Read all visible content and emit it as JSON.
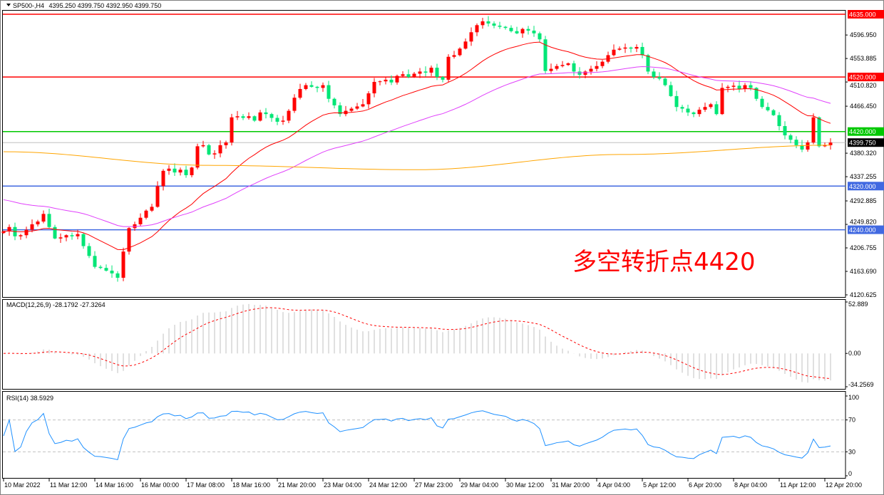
{
  "header": {
    "symbol": "SP500-,H4",
    "ohlc": "4395.250 4399.750 4392.950 4399.750"
  },
  "annotation": "多空转折点4420",
  "colors": {
    "up": "#ff0000",
    "down": "#00e676",
    "ma_fast": "#ff0000",
    "ma_mid": "#e040fb",
    "ma_slow": "#ffa500",
    "rsi": "#1e90ff",
    "macd_hist": "#c0c0c0",
    "macd_signal": "#ff0000"
  },
  "chart_data": [
    {
      "type": "candlestick",
      "title": "SP500-,H4",
      "ylim": [
        4120.625,
        4640
      ],
      "y_ticks": [
        "4596.950",
        "4553.885",
        "4510.820",
        "4466.450",
        "4380.320",
        "4337.255",
        "4292.885",
        "4249.820",
        "4206.755",
        "4163.690",
        "4120.625"
      ],
      "x_ticks": [
        "10 Mar 2022",
        "11 Mar 12:00",
        "14 Mar 16:00",
        "16 Mar 00:00",
        "17 Mar 08:00",
        "18 Mar 16:00",
        "21 Mar 20:00",
        "23 Mar 04:00",
        "24 Mar 12:00",
        "27 Mar 23:00",
        "29 Mar 04:00",
        "30 Mar 12:00",
        "31 Mar 20:00",
        "4 Apr 04:00",
        "5 Apr 12:00",
        "6 Apr 20:00",
        "8 Apr 04:00",
        "11 Apr 12:00",
        "12 Apr 20:00"
      ],
      "closes": [
        4237,
        4245,
        4228,
        4230,
        4240,
        4250,
        4255,
        4269,
        4245,
        4224,
        4226,
        4230,
        4228,
        4232,
        4210,
        4192,
        4172,
        4170,
        4165,
        4160,
        4152,
        4200,
        4243,
        4250,
        4262,
        4275,
        4282,
        4320,
        4348,
        4352,
        4345,
        4350,
        4340,
        4354,
        4393,
        4395,
        4378,
        4380,
        4395,
        4400,
        4446,
        4448,
        4445,
        4448,
        4440,
        4455,
        4452,
        4445,
        4438,
        4440,
        4458,
        4482,
        4498,
        4505,
        4502,
        4500,
        4505,
        4480,
        4468,
        4452,
        4458,
        4462,
        4466,
        4470,
        4490,
        4511,
        4512,
        4515,
        4510,
        4522,
        4525,
        4520,
        4526,
        4530,
        4528,
        4537,
        4520,
        4515,
        4557,
        4560,
        4572,
        4585,
        4602,
        4615,
        4622,
        4618,
        4614,
        4612,
        4610,
        4604,
        4600,
        4608,
        4605,
        4600,
        4589,
        4531,
        4535,
        4540,
        4542,
        4545,
        4530,
        4524,
        4530,
        4535,
        4540,
        4548,
        4560,
        4570,
        4572,
        4574,
        4572,
        4575,
        4560,
        4530,
        4520,
        4517,
        4505,
        4485,
        4465,
        4462,
        4455,
        4452,
        4460,
        4465,
        4470,
        4452,
        4500,
        4502,
        4504,
        4498,
        4505,
        4500,
        4480,
        4465,
        4459,
        4450,
        4430,
        4413,
        4405,
        4395,
        4387,
        4400,
        4446,
        4393,
        4395,
        4399.75
      ],
      "ma_slow_approx": [
        4383,
        4358,
        4350,
        4378,
        4395
      ],
      "levels": [
        {
          "price": 4635,
          "label": "4635.000",
          "color": "#ff0000"
        },
        {
          "price": 4520,
          "label": "4520.000",
          "color": "#ff0000"
        },
        {
          "price": 4420,
          "label": "4420.000",
          "color": "#00c800"
        },
        {
          "price": 4320,
          "label": "4320.000",
          "color": "#4169e1"
        },
        {
          "price": 4240,
          "label": "4240.000",
          "color": "#4169e1"
        }
      ],
      "current_price": {
        "price": 4399.75,
        "label": "4399.750"
      }
    },
    {
      "type": "macd",
      "title": "MACD(12,26,9) -28.1792 -27.3264",
      "ylim": [
        -34.2569,
        52.889
      ],
      "y_ticks": [
        "52.889",
        "0.00",
        "-34.2569"
      ]
    },
    {
      "type": "rsi",
      "title": "RSI(14) 38.5929",
      "ylim": [
        0,
        100
      ],
      "y_ticks": [
        "100",
        "70",
        "30",
        "0"
      ],
      "levels": [
        70,
        30
      ]
    }
  ]
}
